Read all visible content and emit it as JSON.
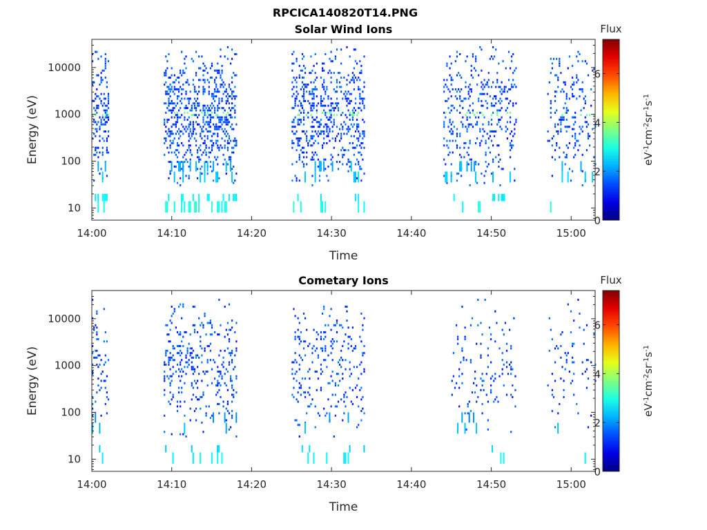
{
  "figure_title": "RPCICA140820T14.PNG",
  "chart_data": [
    {
      "type": "heatmap",
      "title": "Solar Wind Ions",
      "xlabel": "Time",
      "ylabel": "Energy (eV)",
      "y_scale": "log",
      "xlim": [
        "14:00",
        "15:03"
      ],
      "ylim": [
        5.5,
        40000
      ],
      "x_ticks": [
        "14:00",
        "14:10",
        "14:20",
        "14:30",
        "14:40",
        "14:50",
        "15:00"
      ],
      "y_ticks": [
        10,
        100,
        1000,
        10000
      ],
      "y_tick_labels": [
        "10",
        "100",
        "1000",
        "10000"
      ],
      "colorbar": {
        "label": "eV-1cm-2sr-1s-1",
        "title": "Flux",
        "range": [
          0,
          7.4
        ],
        "ticks": [
          0,
          2,
          4,
          6
        ],
        "colormap": "jet"
      },
      "bursts": [
        {
          "start": "14:00",
          "end": "14:02",
          "density": 0.55
        },
        {
          "start": "14:09",
          "end": "14:18",
          "density": 0.65
        },
        {
          "start": "14:25",
          "end": "14:34",
          "density": 0.55
        },
        {
          "start": "14:44",
          "end": "14:53",
          "density": 0.35
        },
        {
          "start": "14:57",
          "end": "15:03",
          "density": 0.25
        }
      ],
      "bright_band": {
        "energy": 1000,
        "flux": 3.6
      },
      "low_energy_flux": 2.8,
      "max_energy": 30000
    },
    {
      "type": "heatmap",
      "title": "Cometary Ions",
      "xlabel": "Time",
      "ylabel": "Energy (eV)",
      "y_scale": "log",
      "xlim": [
        "14:00",
        "15:03"
      ],
      "ylim": [
        5.5,
        40000
      ],
      "x_ticks": [
        "14:00",
        "14:10",
        "14:20",
        "14:30",
        "14:40",
        "14:50",
        "15:00"
      ],
      "y_ticks": [
        10,
        100,
        1000,
        10000
      ],
      "y_tick_labels": [
        "10",
        "100",
        "1000",
        "10000"
      ],
      "colorbar": {
        "label": "eV-1cm-2sr-1s-1",
        "title": "Flux",
        "range": [
          0,
          7.4
        ],
        "ticks": [
          0,
          2,
          4,
          6
        ],
        "colormap": "jet"
      },
      "bursts": [
        {
          "start": "14:00",
          "end": "14:02",
          "density": 0.3
        },
        {
          "start": "14:09",
          "end": "14:18",
          "density": 0.3
        },
        {
          "start": "14:25",
          "end": "14:34",
          "density": 0.22
        },
        {
          "start": "14:45",
          "end": "14:53",
          "density": 0.12
        },
        {
          "start": "14:57",
          "end": "15:03",
          "density": 0.1
        }
      ],
      "bright_band": null,
      "low_energy_flux": 2.6,
      "max_energy": 28000
    }
  ]
}
